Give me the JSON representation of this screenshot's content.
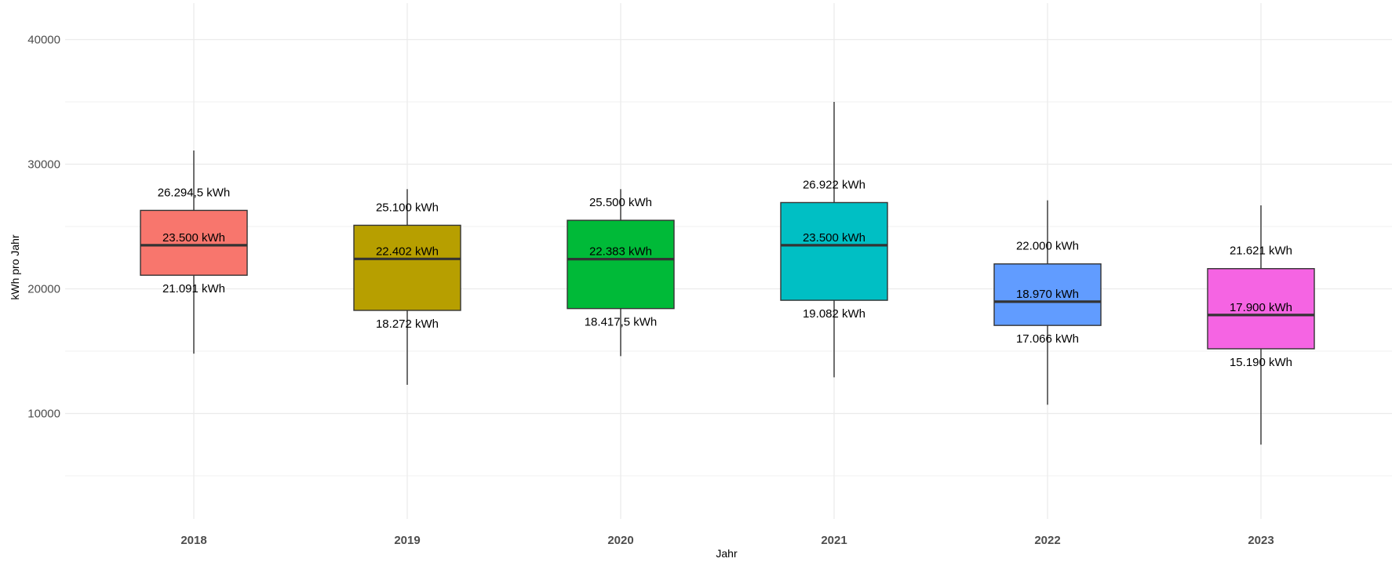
{
  "chart_data": {
    "type": "box",
    "xlabel": "Jahr",
    "ylabel": "kWh pro Jahr",
    "ylim": [
      5500,
      46000
    ],
    "yticks": [
      10000,
      20000,
      30000,
      40000
    ],
    "grid": true,
    "legend": "none",
    "categories": [
      "2018",
      "2019",
      "2020",
      "2021",
      "2022",
      "2023"
    ],
    "boxes": [
      {
        "category": "2018",
        "whisker_low": 14800,
        "q1": 21091,
        "median": 23500,
        "q3": 26294.5,
        "whisker_high": 31100,
        "color": "#F8766D",
        "q1_label": "21.091 kWh",
        "median_label": "23.500 kWh",
        "q3_label": "26.294,5 kWh"
      },
      {
        "category": "2019",
        "whisker_low": 12300,
        "q1": 18272,
        "median": 22402,
        "q3": 25100,
        "whisker_high": 28000,
        "color": "#B79F00",
        "q1_label": "18.272 kWh",
        "median_label": "22.402 kWh",
        "q3_label": "25.100 kWh"
      },
      {
        "category": "2020",
        "whisker_low": 14600,
        "q1": 18417.5,
        "median": 22383,
        "q3": 25500,
        "whisker_high": 28000,
        "color": "#00BA38",
        "q1_label": "18.417,5 kWh",
        "median_label": "22.383 kWh",
        "q3_label": "25.500 kWh"
      },
      {
        "category": "2021",
        "whisker_low": 12900,
        "q1": 19082,
        "median": 23500,
        "q3": 26922,
        "whisker_high": 35000,
        "color": "#00BFC4",
        "q1_label": "19.082 kWh",
        "median_label": "23.500 kWh",
        "q3_label": "26.922 kWh"
      },
      {
        "category": "2022",
        "whisker_low": 10700,
        "q1": 17066,
        "median": 18970,
        "q3": 22000,
        "whisker_high": 27100,
        "color": "#619CFF",
        "q1_label": "17.066 kWh",
        "median_label": "18.970 kWh",
        "q3_label": "22.000 kWh"
      },
      {
        "category": "2023",
        "whisker_low": 7500,
        "q1": 15190,
        "median": 17900,
        "q3": 21621,
        "whisker_high": 26700,
        "color": "#F564E3",
        "q1_label": "15.190 kWh",
        "median_label": "17.900 kWh",
        "q3_label": "21.621 kWh"
      }
    ]
  }
}
